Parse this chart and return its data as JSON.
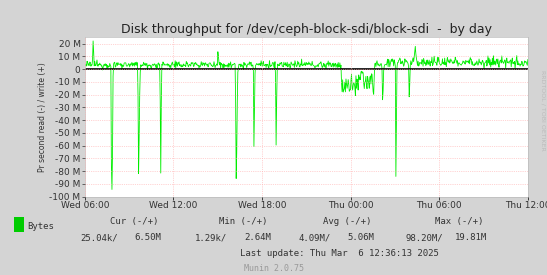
{
  "title": "Disk throughput for /dev/ceph-block-sdi/block-sdi  -  by day",
  "ylabel": "Pr second read (-) / write (+)",
  "xlabel_ticks": [
    "Wed 06:00",
    "Wed 12:00",
    "Wed 18:00",
    "Thu 00:00",
    "Thu 06:00",
    "Thu 12:00"
  ],
  "ylim_min": -100000000.0,
  "ylim_max": 25000000.0,
  "line_color": "#00EE00",
  "bg_color": "#D4D4D4",
  "plot_bg_color": "#FFFFFF",
  "grid_color_major": "#FFAAAA",
  "grid_color_minor": "#FFD4D4",
  "legend_label": "Bytes",
  "legend_color": "#00CC00",
  "munin_label": "Munin 2.0.75",
  "side_label": "RRDTOOL / TOBI OETIKER",
  "title_fontsize": 9,
  "tick_fontsize": 6.5,
  "stats_fontsize": 6.5,
  "n_points": 800,
  "cur_neg": "25.04k/",
  "cur_pos": "6.50M",
  "min_neg": "1.29k/",
  "min_pos": "2.64M",
  "avg_neg": "4.09M/",
  "avg_pos": "5.06M",
  "max_neg": "98.20M/",
  "max_pos": "19.81M",
  "last_update": "Last update: Thu Mar  6 12:36:13 2025"
}
